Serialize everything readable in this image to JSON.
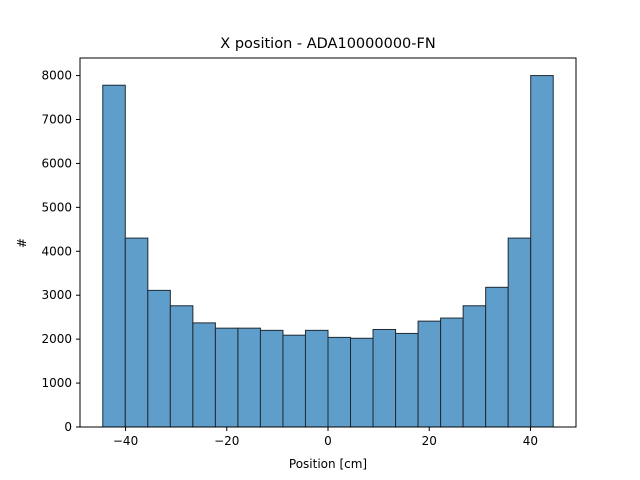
{
  "chart_data": {
    "type": "bar",
    "title": "X position - ADA10000000-FN",
    "xlabel": "Position [cm]",
    "ylabel": "#",
    "xlim": [
      -49,
      49
    ],
    "ylim": [
      0,
      8400
    ],
    "bins": [
      {
        "x0": -44.5,
        "x1": -40.05,
        "value": 7780
      },
      {
        "x0": -40.05,
        "x1": -35.6,
        "value": 4300
      },
      {
        "x0": -35.6,
        "x1": -31.15,
        "value": 3110
      },
      {
        "x0": -31.15,
        "x1": -26.7,
        "value": 2760
      },
      {
        "x0": -26.7,
        "x1": -22.25,
        "value": 2370
      },
      {
        "x0": -22.25,
        "x1": -17.8,
        "value": 2250
      },
      {
        "x0": -17.8,
        "x1": -13.35,
        "value": 2250
      },
      {
        "x0": -13.35,
        "x1": -8.9,
        "value": 2200
      },
      {
        "x0": -8.9,
        "x1": -4.45,
        "value": 2090
      },
      {
        "x0": -4.45,
        "x1": 0.0,
        "value": 2200
      },
      {
        "x0": 0.0,
        "x1": 4.45,
        "value": 2040
      },
      {
        "x0": 4.45,
        "x1": 8.9,
        "value": 2020
      },
      {
        "x0": 8.9,
        "x1": 13.35,
        "value": 2220
      },
      {
        "x0": 13.35,
        "x1": 17.8,
        "value": 2130
      },
      {
        "x0": 17.8,
        "x1": 22.25,
        "value": 2410
      },
      {
        "x0": 22.25,
        "x1": 26.7,
        "value": 2480
      },
      {
        "x0": 26.7,
        "x1": 31.15,
        "value": 2760
      },
      {
        "x0": 31.15,
        "x1": 35.6,
        "value": 3180
      },
      {
        "x0": 35.6,
        "x1": 40.05,
        "value": 4300
      },
      {
        "x0": 40.05,
        "x1": 44.5,
        "value": 8000
      }
    ],
    "xticks": [
      {
        "value": -40,
        "label": "−40"
      },
      {
        "value": -20,
        "label": "−20"
      },
      {
        "value": 0,
        "label": "0"
      },
      {
        "value": 20,
        "label": "20"
      },
      {
        "value": 40,
        "label": "40"
      }
    ],
    "yticks": [
      {
        "value": 0,
        "label": "0"
      },
      {
        "value": 1000,
        "label": "1000"
      },
      {
        "value": 2000,
        "label": "2000"
      },
      {
        "value": 3000,
        "label": "3000"
      },
      {
        "value": 4000,
        "label": "4000"
      },
      {
        "value": 5000,
        "label": "5000"
      },
      {
        "value": 6000,
        "label": "6000"
      },
      {
        "value": 7000,
        "label": "7000"
      },
      {
        "value": 8000,
        "label": "8000"
      }
    ],
    "grid": false,
    "colors": {
      "bar_fill": "#5f9ecb",
      "bar_edge": "#1f2a33"
    }
  }
}
